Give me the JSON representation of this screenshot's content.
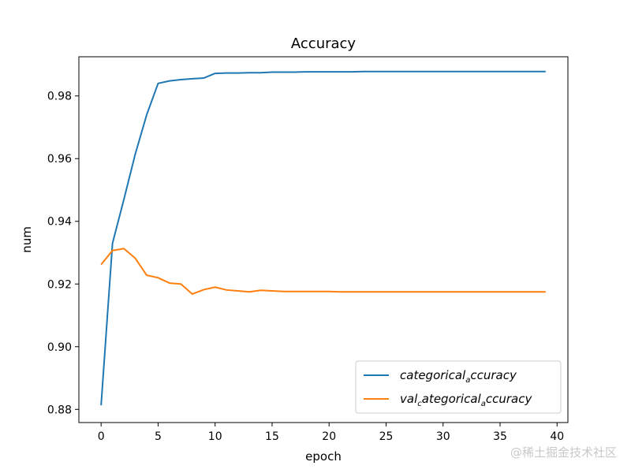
{
  "chart_data": {
    "type": "line",
    "title": "Accuracy",
    "xlabel": "epoch",
    "ylabel": "num",
    "xlim": [
      -1.95,
      40.95
    ],
    "ylim": [
      0.8758,
      0.9925
    ],
    "xticks": [
      0,
      5,
      10,
      15,
      20,
      25,
      30,
      35,
      40
    ],
    "xtick_labels": [
      "0",
      "5",
      "10",
      "15",
      "20",
      "25",
      "30",
      "35",
      "40"
    ],
    "yticks": [
      0.88,
      0.9,
      0.92,
      0.94,
      0.96,
      0.98
    ],
    "ytick_labels": [
      "0.88",
      "0.90",
      "0.92",
      "0.94",
      "0.96",
      "0.98"
    ],
    "grid": false,
    "legend_position": "lower-right",
    "x": [
      0,
      1,
      2,
      3,
      4,
      5,
      6,
      7,
      8,
      9,
      10,
      11,
      12,
      13,
      14,
      15,
      16,
      17,
      18,
      19,
      20,
      21,
      22,
      23,
      24,
      25,
      26,
      27,
      28,
      29,
      30,
      31,
      32,
      33,
      34,
      35,
      36,
      37,
      38,
      39
    ],
    "series": [
      {
        "legend_main": "categorical",
        "legend_sub": "a",
        "legend_tail": "ccuracy",
        "color": "#1f77b4",
        "values": [
          0.8813,
          0.933,
          0.947,
          0.9615,
          0.974,
          0.984,
          0.9848,
          0.9852,
          0.9855,
          0.9857,
          0.9872,
          0.9873,
          0.9873,
          0.9874,
          0.9874,
          0.9876,
          0.9876,
          0.9876,
          0.9877,
          0.9877,
          0.9877,
          0.9877,
          0.9877,
          0.9878,
          0.9878,
          0.9878,
          0.9878,
          0.9878,
          0.9878,
          0.9878,
          0.9878,
          0.9878,
          0.9878,
          0.9878,
          0.9878,
          0.9878,
          0.9878,
          0.9878,
          0.9878,
          0.9878
        ]
      },
      {
        "legend_main": "val",
        "legend_sub": "c",
        "legend_tail": "ategorical",
        "legend_sub2": "a",
        "legend_tail2": "ccuracy",
        "color": "#ff7f0e",
        "values": [
          0.9262,
          0.9307,
          0.9313,
          0.9282,
          0.9228,
          0.922,
          0.9203,
          0.92,
          0.9168,
          0.9182,
          0.919,
          0.9181,
          0.9178,
          0.9175,
          0.918,
          0.9178,
          0.9176,
          0.9176,
          0.9176,
          0.9176,
          0.9176,
          0.9175,
          0.9175,
          0.9175,
          0.9175,
          0.9175,
          0.9175,
          0.9175,
          0.9175,
          0.9175,
          0.9175,
          0.9175,
          0.9175,
          0.9175,
          0.9175,
          0.9175,
          0.9175,
          0.9175,
          0.9175,
          0.9175
        ]
      }
    ]
  },
  "watermark": "@稀土掘金技术社区"
}
